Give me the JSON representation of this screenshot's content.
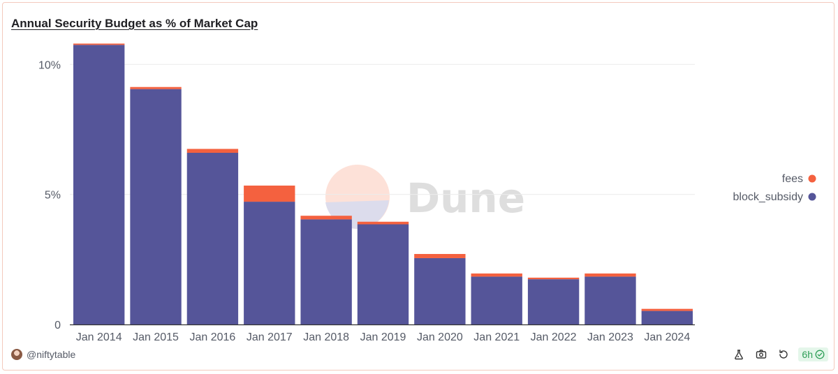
{
  "title": "Annual Security Budget as % of Market Cap",
  "watermark": "Dune",
  "author": "@niftytable",
  "refresh_badge": "6h",
  "footer_icons": [
    "flask-icon",
    "camera-icon",
    "refresh-icon"
  ],
  "colors": {
    "fees": "#f4613f",
    "block_subsidy": "#555599",
    "grid": "#ececec",
    "axis": "#333333"
  },
  "chart_data": {
    "type": "bar",
    "stacked": true,
    "title": "Annual Security Budget as % of Market Cap",
    "categories": [
      "Jan 2014",
      "Jan 2015",
      "Jan 2016",
      "Jan 2017",
      "Jan 2018",
      "Jan 2019",
      "Jan 2020",
      "Jan 2021",
      "Jan 2022",
      "Jan 2023",
      "Jan 2024"
    ],
    "series": [
      {
        "name": "block_subsidy",
        "values": [
          10.75,
          9.05,
          6.6,
          4.72,
          4.04,
          3.85,
          2.55,
          1.84,
          1.74,
          1.84,
          0.52
        ]
      },
      {
        "name": "fees",
        "values": [
          0.05,
          0.08,
          0.15,
          0.62,
          0.14,
          0.1,
          0.16,
          0.12,
          0.06,
          0.12,
          0.08
        ]
      }
    ],
    "legend": [
      "fees",
      "block_subsidy"
    ],
    "y_ticks": [
      0,
      5,
      10
    ],
    "y_tick_labels": [
      "0",
      "5%",
      "10%"
    ],
    "ylim": [
      0,
      11
    ],
    "xlabel": "",
    "ylabel": "",
    "grid": true,
    "legend_position": "right"
  }
}
